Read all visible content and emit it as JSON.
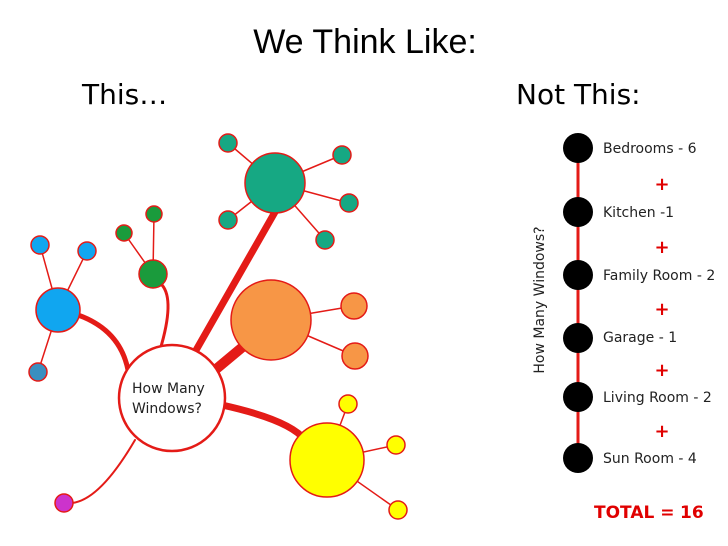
{
  "title": "We Think Like:",
  "left": {
    "heading": "This…",
    "center_node": [
      "How Many",
      "Windows?"
    ]
  },
  "right": {
    "heading": "Not This:",
    "axis_label": "How Many Windows?",
    "items": [
      "Bedrooms - 6",
      "Kitchen -1",
      "Family Room - 2",
      "Garage - 1",
      "Living Room - 2",
      "Sun Room - 4"
    ],
    "separators": [
      "+",
      "+",
      "+",
      "+",
      "+"
    ],
    "total": {
      "label": "TOTAL =",
      "value": 16
    }
  }
}
